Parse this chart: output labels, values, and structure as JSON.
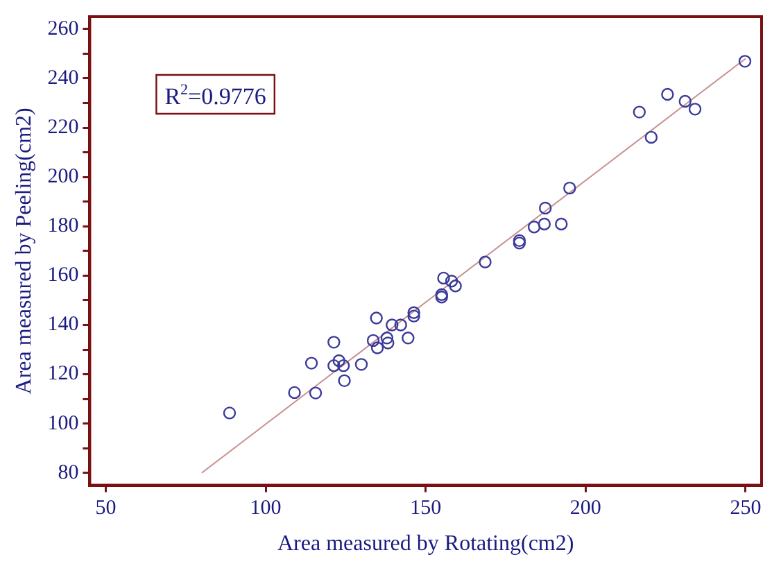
{
  "chart_data": {
    "type": "scatter",
    "xlabel": "Area measured by Rotating(cm2)",
    "ylabel": "Area measured by Peeling(cm2)",
    "annotations": [
      "R$^{2}$=0.9776"
    ],
    "x": [
      88.7,
      109,
      115.6,
      114.3,
      121.3,
      121.3,
      122.9,
      124.3,
      124.6,
      129.9,
      134.6,
      133.6,
      134.9,
      137.9,
      138.2,
      139.5,
      142.2,
      144.5,
      146.3,
      146.3,
      155,
      155,
      155.6,
      158.1,
      159.3,
      168.6,
      179.3,
      179.3,
      183.9,
      187.1,
      187.4,
      192.4,
      195,
      216.8,
      220.5,
      225.6,
      231.1,
      234.2,
      249.8
    ],
    "series": [
      {
        "color": "#3a3a9a",
        "marker": "circle",
        "values": [
          104.3,
          112.6,
          112.4,
          124.5,
          133,
          123.5,
          125.5,
          123.5,
          117.4,
          124,
          142.8,
          133.7,
          130.7,
          134.7,
          132.7,
          140,
          140,
          134.7,
          145,
          143.6,
          152.3,
          151.3,
          159,
          157.8,
          155.8,
          165.5,
          174.2,
          173.2,
          179.7,
          180.9,
          187.4,
          180.9,
          195.5,
          226.3,
          216.1,
          233.5,
          230.7,
          227.5,
          246.9
        ]
      },
      {
        "type": "line",
        "color": "#c89090",
        "x": [
          80,
          250
        ],
        "values": [
          80,
          248
        ]
      }
    ],
    "xlim": [
      45,
      255
    ],
    "xticks": [
      50,
      100,
      150,
      200,
      250
    ],
    "ylim": [
      75,
      265
    ],
    "yticks": [
      80,
      {
        "value": 90,
        "label": null
      },
      100,
      {
        "value": 110,
        "label": null
      },
      120,
      {
        "value": 130,
        "label": null
      },
      140,
      {
        "value": 150,
        "label": null
      },
      160,
      {
        "value": 170,
        "label": null
      },
      180,
      {
        "value": 190,
        "label": null
      },
      200,
      {
        "value": 210,
        "label": null
      },
      220,
      {
        "value": 230,
        "label": null
      },
      240,
      {
        "value": 250,
        "label": null
      },
      260
    ]
  }
}
